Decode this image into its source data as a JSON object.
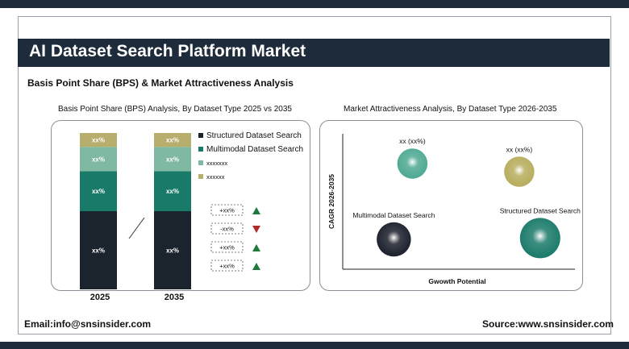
{
  "header": {
    "title": "AI Dataset Search Platform Market",
    "subtitle": "Basis Point Share (BPS) & Market Attractiveness Analysis"
  },
  "left_panel": {
    "title": "Basis Point Share (BPS) Analysis, By Dataset Type 2025 vs 2035"
  },
  "right_panel": {
    "title": "Market Attractiveness Analysis, By Dataset Type 2026-2035"
  },
  "footer": {
    "email": "Email:info@snsinsider.com",
    "source": "Source:www.snsinsider.com"
  },
  "colors": {
    "navy": "#1d2b3b",
    "structured": "#1b232c",
    "multimodal": "#1a7a6a",
    "series3": "#7fb9a1",
    "series4": "#b7ad6d",
    "up": "#1e7a3a",
    "down": "#b02a2a"
  },
  "chart_data": [
    {
      "type": "bar",
      "stacked": true,
      "categories": [
        "2025",
        "2035"
      ],
      "series": [
        {
          "name": "Structured Dataset Search",
          "values": [
            45,
            45
          ],
          "labels": [
            "xx%",
            "xx%"
          ],
          "color": "#1b232c"
        },
        {
          "name": "Multimodal Dataset Search",
          "values": [
            23,
            23
          ],
          "labels": [
            "xx%",
            "xx%"
          ],
          "color": "#1a7a6a"
        },
        {
          "name": "xxxxxxx",
          "values": [
            14,
            14
          ],
          "labels": [
            "xx%",
            "xx%"
          ],
          "color": "#7fb9a1"
        },
        {
          "name": "xxxxxx",
          "values": [
            8,
            8
          ],
          "labels": [
            "xx%",
            "xx%"
          ],
          "color": "#b7ad6d"
        }
      ],
      "changes": [
        {
          "label": "+xx%",
          "direction": "up"
        },
        {
          "label": "-xx%",
          "direction": "down"
        },
        {
          "label": "+xx%",
          "direction": "up"
        },
        {
          "label": "+xx%",
          "direction": "up"
        }
      ],
      "legend_position": "right"
    },
    {
      "type": "scatter",
      "xlabel": "Gwowth Potential",
      "ylabel": "CAGR 2026-2035",
      "points": [
        {
          "label": "xx (xx%)",
          "x": 0.3,
          "y": 0.78,
          "size": 0.35,
          "color": "#4ea992"
        },
        {
          "label": "xx (xx%)",
          "x": 0.76,
          "y": 0.72,
          "size": 0.35,
          "color": "#b7ad5d"
        },
        {
          "label": "Multimodal Dataset Search",
          "x": 0.22,
          "y": 0.22,
          "size": 0.45,
          "color": "#1b1f2b"
        },
        {
          "label": "Structured Dataset Search",
          "x": 0.85,
          "y": 0.23,
          "size": 0.6,
          "color": "#1a7a6a"
        }
      ]
    }
  ]
}
